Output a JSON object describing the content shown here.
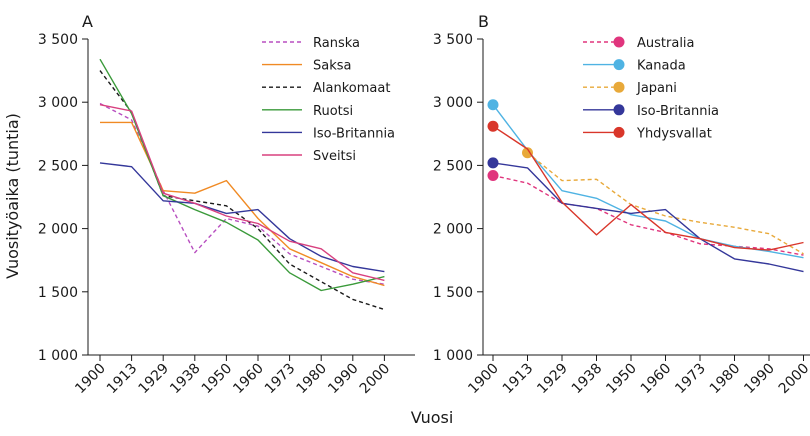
{
  "chart_data": [
    {
      "panel": "A",
      "type": "line",
      "ylabel": "Vuosityöaika (tuntia)",
      "xlabel": "Vuosi",
      "categories": [
        "1900",
        "1913",
        "1929",
        "1938",
        "1950",
        "1960",
        "1973",
        "1980",
        "1990",
        "2000"
      ],
      "ylim": [
        1000,
        3500
      ],
      "yticks": [
        1000,
        1500,
        2000,
        2500,
        3000,
        3500
      ],
      "ytick_labels": [
        "1 000",
        "1 500",
        "2 000",
        "2 500",
        "3 000",
        "3 500"
      ],
      "legend_position": "top-right",
      "series": [
        {
          "name": "Ranska",
          "color": "#b84fc0",
          "dash": "dashed",
          "points": [
            [
              1900,
              2990
            ],
            [
              1913,
              2860
            ],
            [
              1929,
              2300
            ],
            [
              1938,
              1810
            ],
            [
              1950,
              2080
            ],
            [
              1960,
              2020
            ],
            [
              1973,
              1800
            ],
            [
              1980,
              1700
            ],
            [
              1990,
              1600
            ],
            [
              2000,
              1560
            ]
          ]
        },
        {
          "name": "Saksa",
          "color": "#f08a24",
          "dash": "solid",
          "points": [
            [
              1900,
              2840
            ],
            [
              1913,
              2840
            ],
            [
              1929,
              2300
            ],
            [
              1938,
              2280
            ],
            [
              1950,
              2380
            ],
            [
              1960,
              2080
            ],
            [
              1973,
              1840
            ],
            [
              1980,
              1730
            ],
            [
              1990,
              1620
            ],
            [
              2000,
              1550
            ]
          ]
        },
        {
          "name": "Alankomaat",
          "color": "#1a1a1a",
          "dash": "dashed",
          "points": [
            [
              1900,
              3250
            ],
            [
              1913,
              2920
            ],
            [
              1929,
              2260
            ],
            [
              1938,
              2220
            ],
            [
              1950,
              2180
            ],
            [
              1960,
              2000
            ],
            [
              1973,
              1720
            ],
            [
              1980,
              1580
            ],
            [
              1990,
              1440
            ],
            [
              2000,
              1360
            ]
          ]
        },
        {
          "name": "Ruotsi",
          "color": "#3a9a3a",
          "dash": "solid",
          "points": [
            [
              1900,
              3340
            ],
            [
              1913,
              2910
            ],
            [
              1929,
              2260
            ],
            [
              1938,
              2150
            ],
            [
              1950,
              2050
            ],
            [
              1960,
              1910
            ],
            [
              1973,
              1650
            ],
            [
              1980,
              1510
            ],
            [
              1990,
              1560
            ],
            [
              2000,
              1620
            ]
          ]
        },
        {
          "name": "Iso-Britannia",
          "color": "#34379a",
          "dash": "solid",
          "points": [
            [
              1900,
              2520
            ],
            [
              1913,
              2490
            ],
            [
              1929,
              2220
            ],
            [
              1938,
              2200
            ],
            [
              1950,
              2120
            ],
            [
              1960,
              2150
            ],
            [
              1973,
              1920
            ],
            [
              1980,
              1780
            ],
            [
              1990,
              1700
            ],
            [
              2000,
              1660
            ]
          ]
        },
        {
          "name": "Sveitsi",
          "color": "#d8407f",
          "dash": "solid",
          "points": [
            [
              1900,
              2980
            ],
            [
              1913,
              2930
            ],
            [
              1929,
              2280
            ],
            [
              1938,
              2200
            ],
            [
              1950,
              2100
            ],
            [
              1960,
              2040
            ],
            [
              1973,
              1900
            ],
            [
              1980,
              1840
            ],
            [
              1990,
              1650
            ],
            [
              2000,
              1590
            ]
          ]
        }
      ]
    },
    {
      "panel": "B",
      "type": "line",
      "xlabel": "Vuosi",
      "categories": [
        "1900",
        "1913",
        "1929",
        "1938",
        "1950",
        "1960",
        "1973",
        "1980",
        "1990",
        "2000"
      ],
      "ylim": [
        1000,
        3500
      ],
      "yticks": [
        1000,
        1500,
        2000,
        2500,
        3000,
        3500
      ],
      "ytick_labels": [
        "1 000",
        "1 500",
        "2 000",
        "2 500",
        "3 000",
        "3 500"
      ],
      "legend_position": "top-right",
      "series": [
        {
          "name": "Australia",
          "color": "#e0357d",
          "dash": "dashed",
          "marker_at": 1900,
          "points": [
            [
              1900,
              2420
            ],
            [
              1913,
              2360
            ],
            [
              1929,
              2200
            ],
            [
              1938,
              2160
            ],
            [
              1950,
              2030
            ],
            [
              1960,
              1970
            ],
            [
              1973,
              1880
            ],
            [
              1980,
              1860
            ],
            [
              1990,
              1840
            ],
            [
              2000,
              1790
            ]
          ]
        },
        {
          "name": "Kanada",
          "color": "#4fb3e3",
          "dash": "solid",
          "marker_at": 1900,
          "points": [
            [
              1900,
              2980
            ],
            [
              1913,
              2620
            ],
            [
              1929,
              2300
            ],
            [
              1938,
              2240
            ],
            [
              1950,
              2110
            ],
            [
              1960,
              2060
            ],
            [
              1973,
              1920
            ],
            [
              1980,
              1860
            ],
            [
              1990,
              1820
            ],
            [
              2000,
              1770
            ]
          ]
        },
        {
          "name": "Japani",
          "color": "#e8a93a",
          "dash": "dashed",
          "marker_at": 1913,
          "points": [
            [
              1913,
              2600
            ],
            [
              1929,
              2380
            ],
            [
              1938,
              2390
            ],
            [
              1950,
              2190
            ],
            [
              1960,
              2100
            ],
            [
              1973,
              2050
            ],
            [
              1980,
              2010
            ],
            [
              1990,
              1960
            ],
            [
              2000,
              1800
            ]
          ]
        },
        {
          "name": "Iso-Britannia",
          "color": "#34379a",
          "dash": "solid",
          "marker_at": 1900,
          "points": [
            [
              1900,
              2520
            ],
            [
              1913,
              2480
            ],
            [
              1929,
              2200
            ],
            [
              1938,
              2160
            ],
            [
              1950,
              2120
            ],
            [
              1960,
              2150
            ],
            [
              1973,
              1920
            ],
            [
              1980,
              1760
            ],
            [
              1990,
              1720
            ],
            [
              2000,
              1660
            ]
          ]
        },
        {
          "name": "Yhdysvallat",
          "color": "#d9362a",
          "dash": "solid",
          "marker_at": 1900,
          "points": [
            [
              1900,
              2810
            ],
            [
              1913,
              2630
            ],
            [
              1929,
              2210
            ],
            [
              1938,
              1950
            ],
            [
              1950,
              2190
            ],
            [
              1960,
              1970
            ],
            [
              1973,
              1920
            ],
            [
              1980,
              1850
            ],
            [
              1990,
              1830
            ],
            [
              2000,
              1890
            ]
          ]
        }
      ]
    }
  ]
}
